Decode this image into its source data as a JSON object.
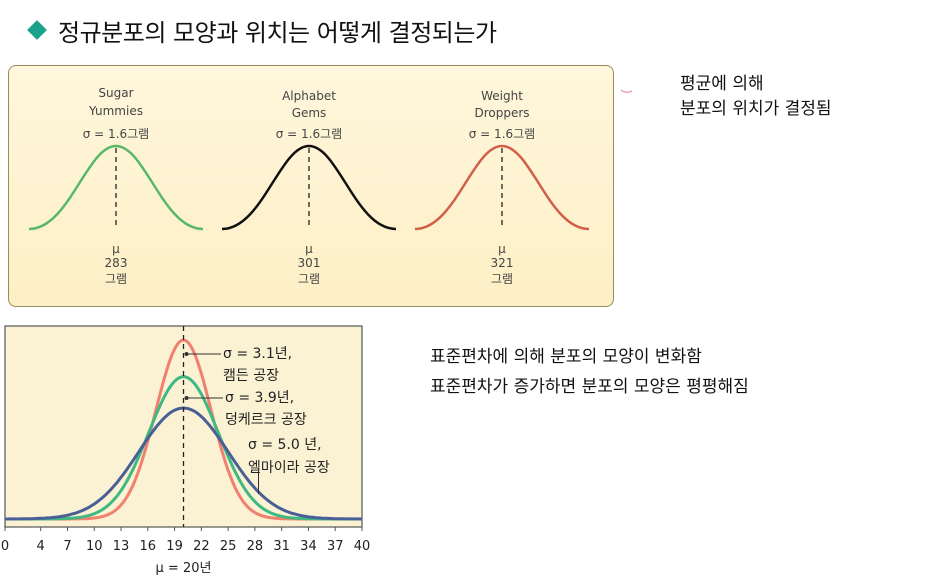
{
  "title": "정규분포의 모양과 위치는 어떻게 결정되는가",
  "panel1": {
    "curves": [
      {
        "name_line1": "Sugar",
        "name_line2": "Yummies",
        "sigma": "σ = 1.6그램",
        "mu_symbol": "μ",
        "mean": "283",
        "unit": "그램",
        "color": "#58b86a"
      },
      {
        "name_line1": "Alphabet",
        "name_line2": "Gems",
        "sigma": "σ = 1.6그램",
        "mu_symbol": "μ",
        "mean": "301",
        "unit": "그램",
        "color": "#111111"
      },
      {
        "name_line1": "Weight",
        "name_line2": "Droppers",
        "sigma": "σ = 1.6그램",
        "mu_symbol": "μ",
        "mean": "321",
        "unit": "그램",
        "color": "#d25f47"
      }
    ]
  },
  "note1": {
    "line1": "평균에 의해",
    "line2": "분포의 위치가 결정됨"
  },
  "note2": {
    "line1": "표준편차에 의해 분포의 모양이 변화함",
    "line2": "표준편차가 증가하면 분포의 모양은 평평해짐"
  },
  "chart_data": {
    "type": "line",
    "x_ticks": [
      0,
      4,
      7,
      10,
      13,
      16,
      19,
      22,
      25,
      28,
      31,
      34,
      37,
      40
    ],
    "xlabel": "μ = 20년",
    "mean": 20,
    "series": [
      {
        "sigma": 3.1,
        "label_line1": "σ = 3.1년,",
        "label_line2": "캠든 공장",
        "color": "#f08070"
      },
      {
        "sigma": 3.9,
        "label_line1": "σ = 3.9년,",
        "label_line2": "덩케르크 공장",
        "color": "#3fb981"
      },
      {
        "sigma": 5.0,
        "label_line1": "σ = 5.0 년,",
        "label_line2": "엘마이라 공장",
        "color": "#4a5f95"
      }
    ]
  }
}
